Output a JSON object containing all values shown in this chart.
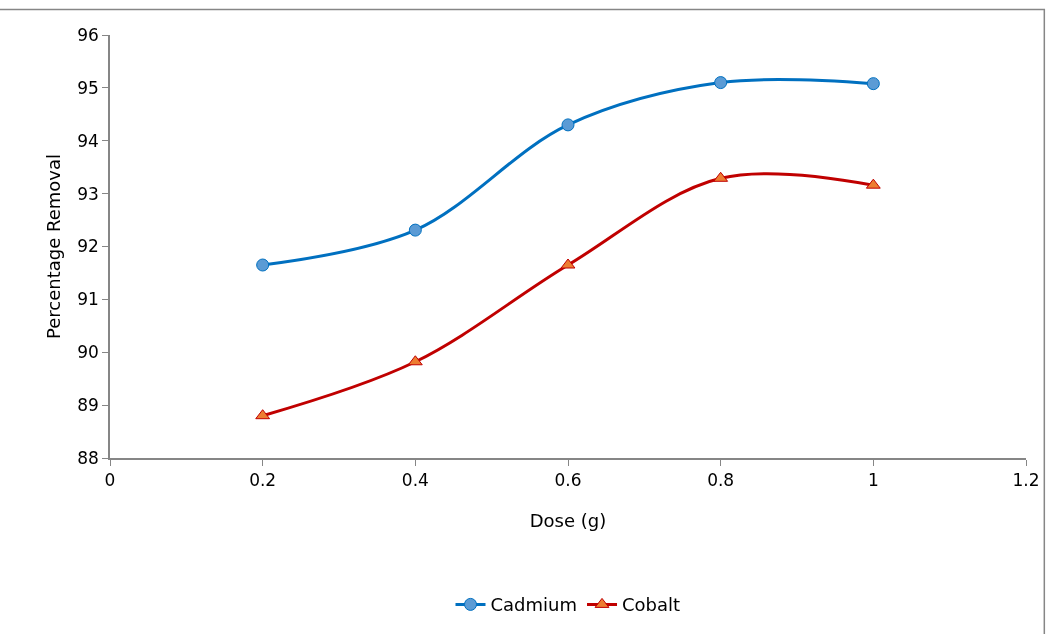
{
  "chart_data": {
    "type": "line",
    "xlabel": "Dose (g)",
    "ylabel": "Percentage Removal",
    "x": [
      0.2,
      0.4,
      0.6,
      0.8,
      1.0
    ],
    "series": [
      {
        "name": "Cadmium",
        "color": "#0070c0",
        "marker": "circle",
        "values": [
          91.65,
          92.31,
          94.3,
          95.1,
          95.08
        ]
      },
      {
        "name": "Cobalt",
        "color": "#c00000",
        "marker": "triangle",
        "values": [
          88.8,
          89.82,
          91.65,
          93.29,
          93.16
        ]
      }
    ],
    "xlim": [
      0,
      1.2
    ],
    "xticks": [
      0,
      0.2,
      0.4,
      0.6,
      0.8,
      1,
      1.2
    ],
    "ylim": [
      88,
      96
    ],
    "yticks": [
      88,
      89,
      90,
      91,
      92,
      93,
      94,
      95,
      96
    ],
    "legend": "bottom"
  }
}
